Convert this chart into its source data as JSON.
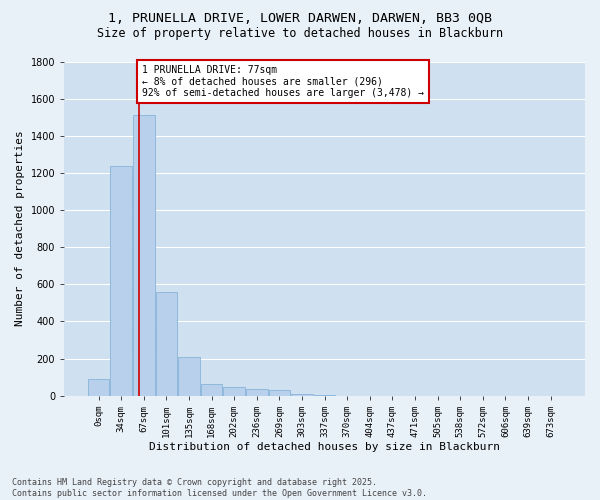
{
  "title_line1": "1, PRUNELLA DRIVE, LOWER DARWEN, DARWEN, BB3 0QB",
  "title_line2": "Size of property relative to detached houses in Blackburn",
  "xlabel": "Distribution of detached houses by size in Blackburn",
  "ylabel": "Number of detached properties",
  "bar_color": "#b8d0eb",
  "bar_edge_color": "#7aadd4",
  "background_color": "#cfe0f0",
  "fig_background_color": "#e8f0f8",
  "grid_color": "#ffffff",
  "categories": [
    "0sqm",
    "34sqm",
    "67sqm",
    "101sqm",
    "135sqm",
    "168sqm",
    "202sqm",
    "236sqm",
    "269sqm",
    "303sqm",
    "337sqm",
    "370sqm",
    "404sqm",
    "437sqm",
    "471sqm",
    "505sqm",
    "538sqm",
    "572sqm",
    "606sqm",
    "639sqm",
    "673sqm"
  ],
  "values": [
    90,
    1235,
    1510,
    560,
    210,
    65,
    47,
    37,
    28,
    10,
    5,
    0,
    0,
    0,
    0,
    0,
    0,
    0,
    0,
    0,
    0
  ],
  "ylim": [
    0,
    1800
  ],
  "yticks": [
    0,
    200,
    400,
    600,
    800,
    1000,
    1200,
    1400,
    1600,
    1800
  ],
  "property_line_x": 1.78,
  "annotation_text": "1 PRUNELLA DRIVE: 77sqm\n← 8% of detached houses are smaller (296)\n92% of semi-detached houses are larger (3,478) →",
  "annotation_box_color": "#ffffff",
  "annotation_box_edge": "#cc0000",
  "property_line_color": "#cc0000",
  "footer_text": "Contains HM Land Registry data © Crown copyright and database right 2025.\nContains public sector information licensed under the Open Government Licence v3.0.",
  "title_fontsize": 9.5,
  "subtitle_fontsize": 8.5,
  "tick_fontsize": 6.5,
  "label_fontsize": 8,
  "footer_fontsize": 6,
  "annot_fontsize": 7
}
